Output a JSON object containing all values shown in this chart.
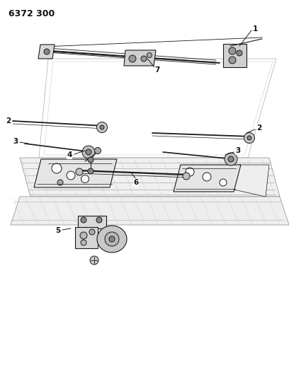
{
  "title": "6372 300",
  "bg_color": "#ffffff",
  "line_color": "#1a1a1a",
  "label_color": "#111111",
  "fig_width": 4.08,
  "fig_height": 5.33,
  "dpi": 100
}
